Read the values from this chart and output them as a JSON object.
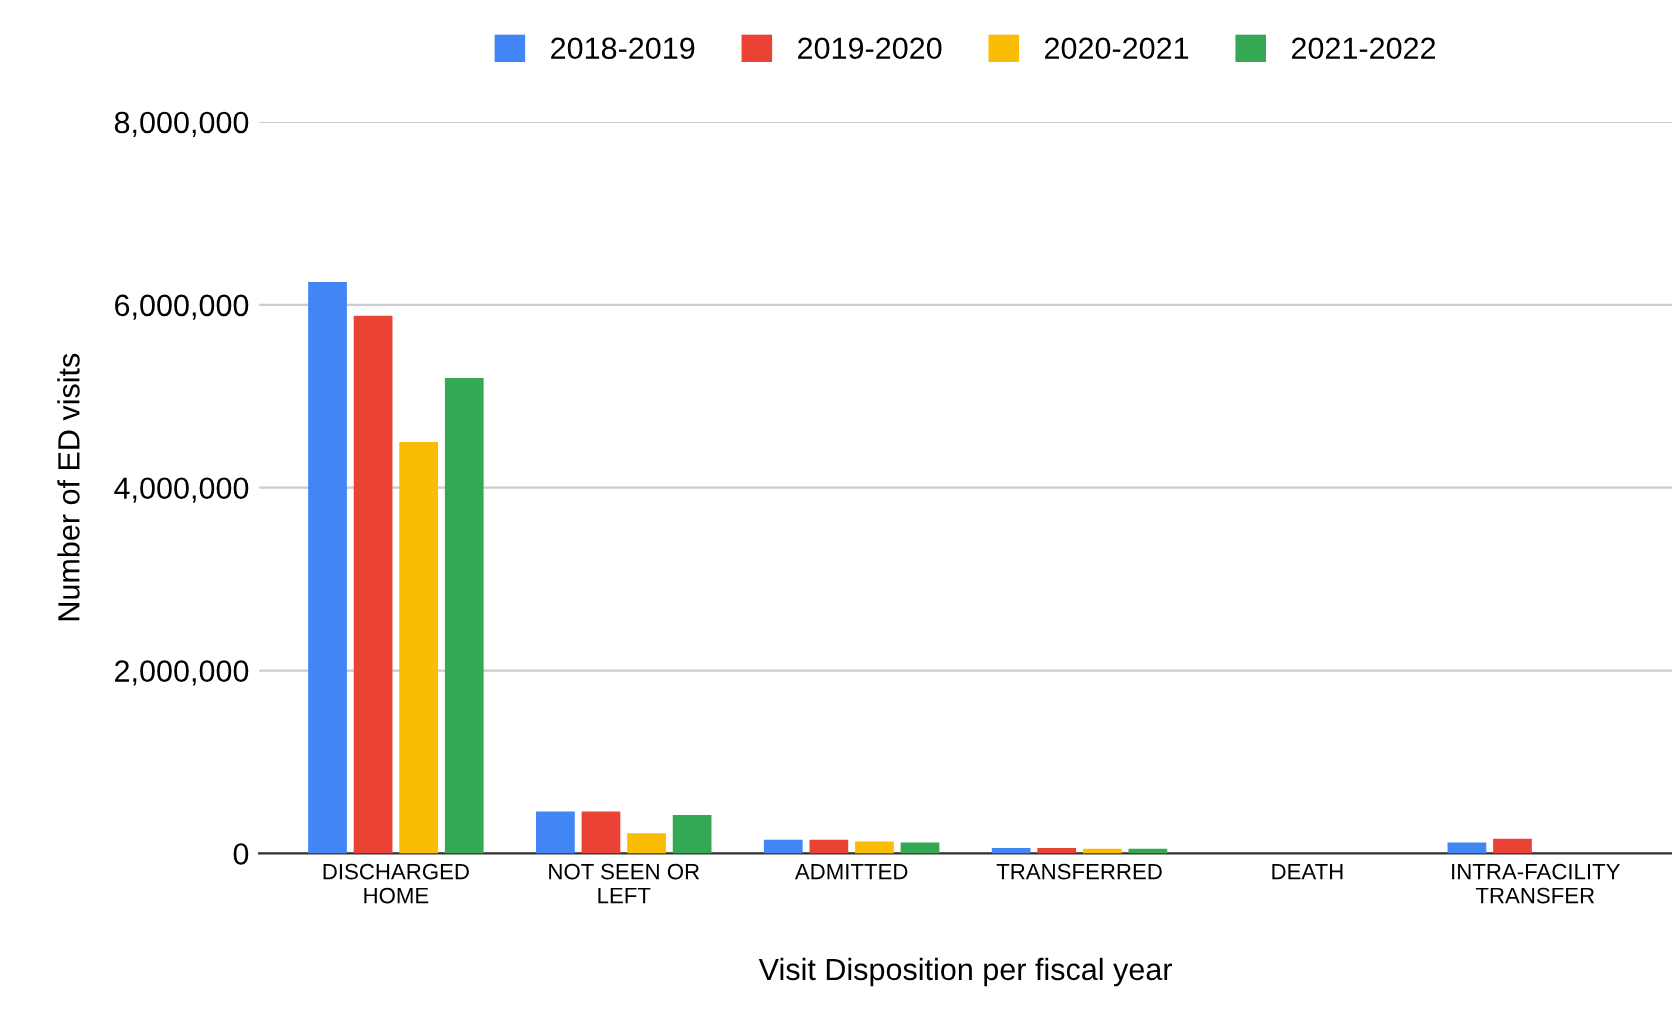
{
  "chart_data": {
    "type": "bar",
    "xlabel": "Visit Disposition per fiscal year",
    "ylabel": "Number of ED visits",
    "categories": [
      "DISCHARGED\nHOME",
      "NOT SEEN OR\nLEFT",
      "ADMITTED",
      "TRANSFERRED",
      "DEATH",
      "INTRA-FACILITY\nTRANSFER"
    ],
    "series": [
      {
        "name": "2018-2019",
        "color": "#4285f4",
        "values": [
          6250000,
          460000,
          150000,
          60000,
          null,
          120000
        ]
      },
      {
        "name": "2019-2020",
        "color": "#ea4335",
        "values": [
          5880000,
          460000,
          150000,
          60000,
          null,
          160000
        ]
      },
      {
        "name": "2020-2021",
        "color": "#fbbc04",
        "values": [
          4500000,
          220000,
          130000,
          50000,
          null,
          null
        ]
      },
      {
        "name": "2021-2022",
        "color": "#34a853",
        "values": [
          5200000,
          420000,
          120000,
          50000,
          null,
          null
        ]
      }
    ],
    "ylim": [
      0,
      8000000
    ],
    "yticks": [
      {
        "value": 0,
        "label": "0"
      },
      {
        "value": 2000000,
        "label": "2,000,000"
      },
      {
        "value": 4000000,
        "label": "4,000,000"
      },
      {
        "value": 6000000,
        "label": "6,000,000"
      },
      {
        "value": 8000000,
        "label": "8,000,000"
      }
    ],
    "grid": "y",
    "legend": "top"
  }
}
